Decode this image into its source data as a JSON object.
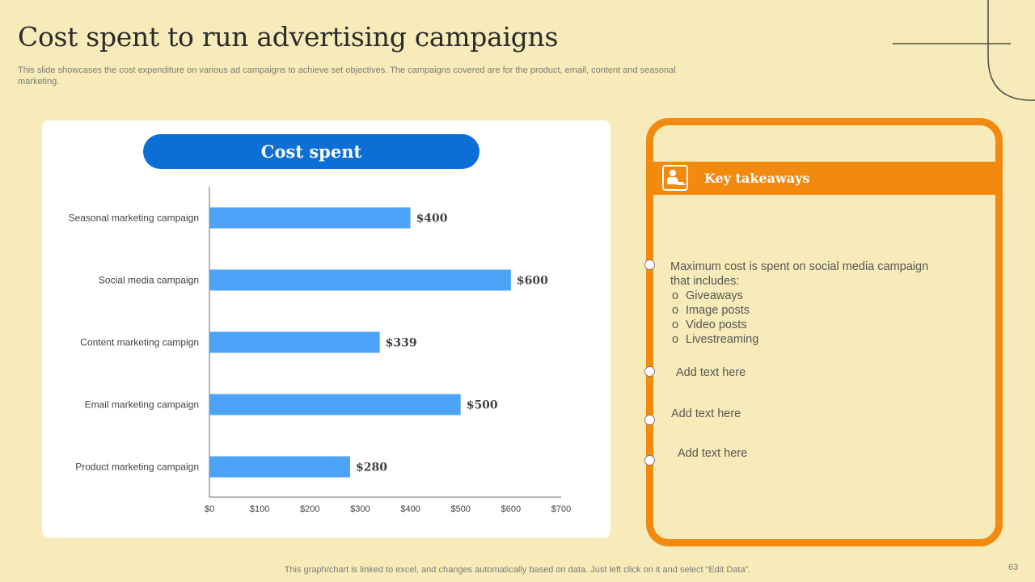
{
  "title": "Cost spent to run advertising campaigns",
  "subtitle": "This slide showcases the cost expenditure on various ad campaigns to achieve set objectives. The campaigns covered are for the product, email, content and seasonal marketing.",
  "chart_data": {
    "type": "bar",
    "orientation": "horizontal",
    "title": "Cost spent",
    "categories": [
      "Seasonal marketing campaign",
      "Social media campaign",
      "Content marketing campign",
      "Email marketing campaign",
      "Product marketing campaign"
    ],
    "values": [
      400,
      600,
      339,
      500,
      280
    ],
    "data_labels": [
      "$400",
      "$600",
      "$339",
      "$500",
      "$280"
    ],
    "xlim": [
      0,
      700
    ],
    "ticks": [
      "$0",
      "$100",
      "$200",
      "$300",
      "$400",
      "$500",
      "$600",
      "$700"
    ],
    "grid": false,
    "bar_color": "#4da3f7"
  },
  "takeaways": {
    "heading": "Key takeaways",
    "items": [
      {
        "text": "Maximum cost is spent on social media campaign that includes:",
        "bullets": [
          "Giveaways",
          "Image posts",
          "Video posts",
          "Livestreaming"
        ]
      },
      {
        "text": "Add text here"
      },
      {
        "text": "Add text here"
      },
      {
        "text": "Add text here"
      }
    ]
  },
  "colors": {
    "background": "#f7ecb9",
    "accent": "#f28a10",
    "pill": "#0b6fd6"
  },
  "icons": {
    "takeaway": "person-at-desk-icon"
  },
  "footer": "This graph/chart is linked to excel,  and changes automatically based on data. Just left click on it and select “Edit Data”.",
  "page_number": "63"
}
